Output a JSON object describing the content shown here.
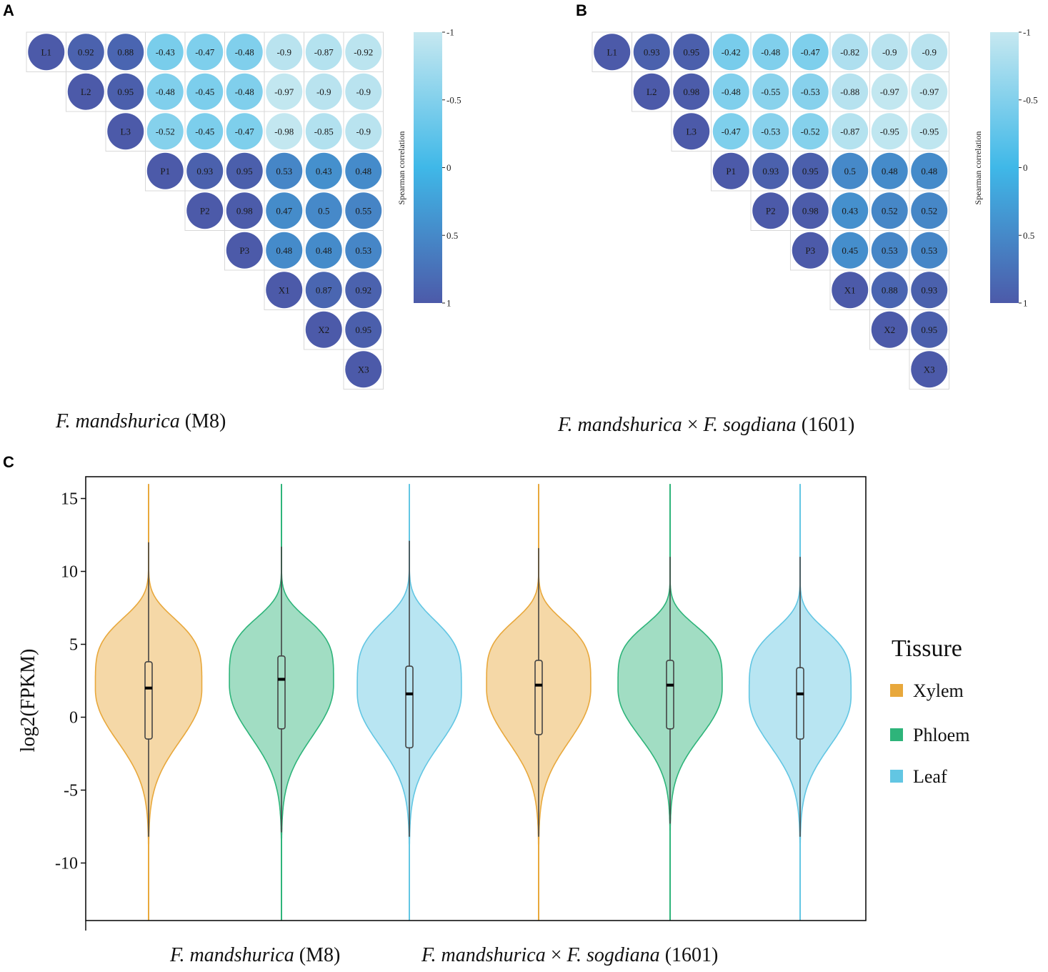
{
  "panels": {
    "a_label": "A",
    "b_label": "B",
    "c_label": "C"
  },
  "colors": {
    "corr_neg1": "#c6e8f0",
    "corr_mid": "#3fb8e8",
    "corr_pos1": "#4c5aa9",
    "xylem": "#e8a83c",
    "phloem": "#2eb47a",
    "leaf": "#62c6e3"
  },
  "chart_data": [
    {
      "type": "heatmap",
      "id": "panel-a",
      "labels": [
        "L1",
        "L2",
        "L3",
        "P1",
        "P2",
        "P3",
        "X1",
        "X2",
        "X3"
      ],
      "matrix": [
        [
          null,
          0.92,
          0.88,
          -0.43,
          -0.47,
          -0.48,
          -0.9,
          -0.87,
          -0.92
        ],
        [
          null,
          null,
          0.95,
          -0.48,
          -0.45,
          -0.48,
          -0.97,
          -0.9,
          -0.9
        ],
        [
          null,
          null,
          null,
          -0.52,
          -0.45,
          -0.47,
          -0.98,
          -0.85,
          -0.9
        ],
        [
          null,
          null,
          null,
          null,
          0.93,
          0.95,
          0.53,
          0.43,
          0.48
        ],
        [
          null,
          null,
          null,
          null,
          null,
          0.98,
          0.47,
          0.5,
          0.55
        ],
        [
          null,
          null,
          null,
          null,
          null,
          null,
          0.48,
          0.48,
          0.53
        ],
        [
          null,
          null,
          null,
          null,
          null,
          null,
          null,
          0.87,
          0.92
        ],
        [
          null,
          null,
          null,
          null,
          null,
          null,
          null,
          null,
          0.95
        ],
        [
          null,
          null,
          null,
          null,
          null,
          null,
          null,
          null,
          null
        ]
      ],
      "colorbar": {
        "ticks": [
          "-1",
          "-0.5",
          "0",
          "0.5",
          "1"
        ],
        "title": "Spearman correlation",
        "range": [
          -1,
          1
        ]
      },
      "caption_italic": "F. mandshurica",
      "caption_plain": " (M8)"
    },
    {
      "type": "heatmap",
      "id": "panel-b",
      "labels": [
        "L1",
        "L2",
        "L3",
        "P1",
        "P2",
        "P3",
        "X1",
        "X2",
        "X3"
      ],
      "matrix": [
        [
          null,
          0.93,
          0.95,
          -0.42,
          -0.48,
          -0.47,
          -0.82,
          -0.9,
          -0.9
        ],
        [
          null,
          null,
          0.98,
          -0.48,
          -0.55,
          -0.53,
          -0.88,
          -0.97,
          -0.97
        ],
        [
          null,
          null,
          null,
          -0.47,
          -0.53,
          -0.52,
          -0.87,
          -0.95,
          -0.95
        ],
        [
          null,
          null,
          null,
          null,
          0.93,
          0.95,
          0.5,
          0.48,
          0.48
        ],
        [
          null,
          null,
          null,
          null,
          null,
          0.98,
          0.43,
          0.52,
          0.52
        ],
        [
          null,
          null,
          null,
          null,
          null,
          null,
          0.45,
          0.53,
          0.53
        ],
        [
          null,
          null,
          null,
          null,
          null,
          null,
          null,
          0.88,
          0.93
        ],
        [
          null,
          null,
          null,
          null,
          null,
          null,
          null,
          null,
          0.95
        ],
        [
          null,
          null,
          null,
          null,
          null,
          null,
          null,
          null,
          null
        ]
      ],
      "colorbar": {
        "ticks": [
          "-1",
          "-0.5",
          "0",
          "0.5",
          "1"
        ],
        "title": "Spearman correlation",
        "range": [
          -1,
          1
        ]
      },
      "caption_italic_1": "F. mandshurica",
      "caption_plain_1": " × ",
      "caption_italic_2": "F. sogdiana",
      "caption_plain_2": "  (1601)"
    },
    {
      "type": "violin",
      "id": "panel-c",
      "ylabel": "log2(FPKM)",
      "ylim": [
        -14,
        16.5
      ],
      "yticks": [
        15,
        10,
        5,
        0,
        -5,
        -10
      ],
      "ytick_labels": [
        "15",
        "10",
        "5",
        "0",
        "-5",
        "-10"
      ],
      "legend": {
        "title": "Tissure",
        "items": [
          "Xylem",
          "Phloem",
          "Leaf"
        ]
      },
      "groups": [
        {
          "group": "M8",
          "tissue": "Xylem",
          "color_key": "xylem",
          "min": -14,
          "max": 16,
          "whisker_low": -8.2,
          "whisker_high": 12.0,
          "q1": -1.5,
          "median": 2.0,
          "q3": 3.8,
          "mode": 2.0,
          "max_width": 0.92
        },
        {
          "group": "M8",
          "tissue": "Phloem",
          "color_key": "phloem",
          "min": -14,
          "max": 16,
          "whisker_low": -7.9,
          "whisker_high": 11.7,
          "q1": -0.8,
          "median": 2.6,
          "q3": 4.2,
          "mode": 2.3,
          "max_width": 0.9
        },
        {
          "group": "M8",
          "tissue": "Leaf",
          "color_key": "leaf",
          "min": -14,
          "max": 16,
          "whisker_low": -8.2,
          "whisker_high": 12.1,
          "q1": -2.1,
          "median": 1.6,
          "q3": 3.5,
          "mode": 1.7,
          "max_width": 0.9
        },
        {
          "group": "1601",
          "tissue": "Xylem",
          "color_key": "xylem",
          "min": -14,
          "max": 16,
          "whisker_low": -8.2,
          "whisker_high": 11.6,
          "q1": -1.2,
          "median": 2.2,
          "q3": 3.9,
          "mode": 2.0,
          "max_width": 0.9
        },
        {
          "group": "1601",
          "tissue": "Phloem",
          "color_key": "phloem",
          "min": -14,
          "max": 16,
          "whisker_low": -7.3,
          "whisker_high": 11.0,
          "q1": -0.8,
          "median": 2.2,
          "q3": 3.9,
          "mode": 2.0,
          "max_width": 0.9
        },
        {
          "group": "1601",
          "tissue": "Leaf",
          "color_key": "leaf",
          "min": -14,
          "max": 16,
          "whisker_low": -8.2,
          "whisker_high": 11.0,
          "q1": -1.5,
          "median": 1.6,
          "q3": 3.4,
          "mode": 1.5,
          "max_width": 0.88
        }
      ],
      "x_caption_1_italic": "F. mandshurica",
      "x_caption_1_plain": " (M8)",
      "x_caption_2_italic_1": "F. mandshurica",
      "x_caption_2_plain_1": " × ",
      "x_caption_2_italic_2": "F. sogdiana",
      "x_caption_2_plain_2": "  (1601)"
    }
  ]
}
